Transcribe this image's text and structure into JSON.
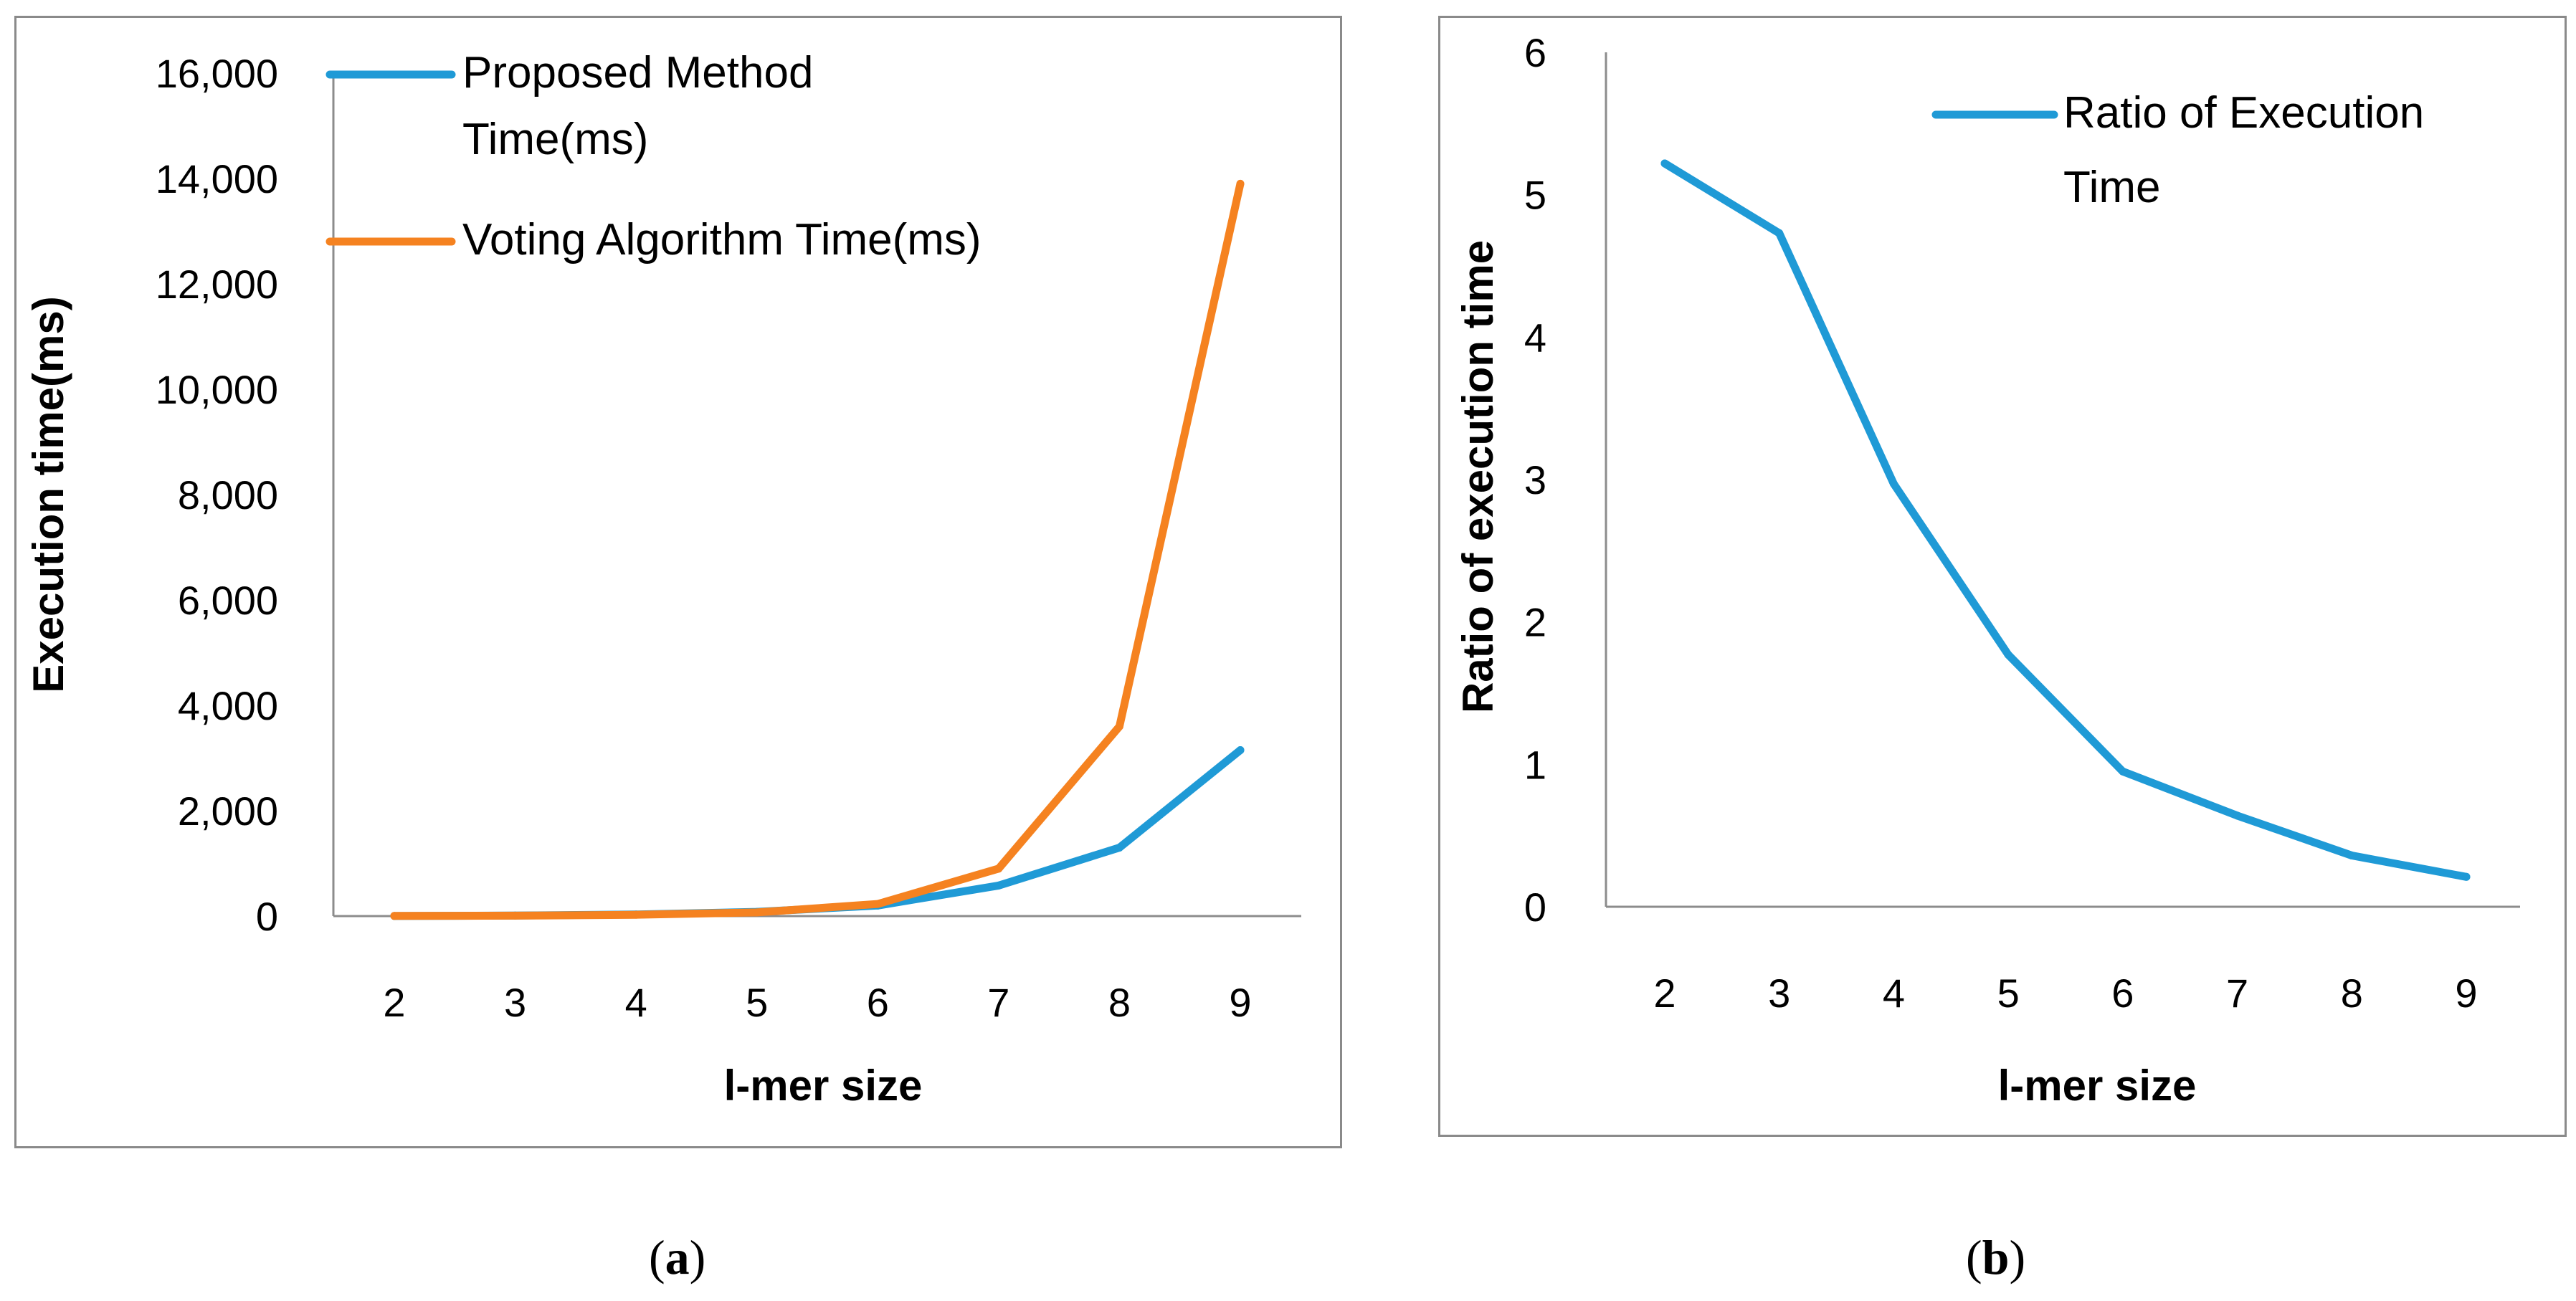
{
  "chart_data": [
    {
      "type": "line",
      "panel": "a",
      "title": "",
      "xlabel": "l-mer size",
      "ylabel": "Execution time(ms)",
      "categories": [
        "2",
        "3",
        "4",
        "5",
        "6",
        "7",
        "8",
        "9"
      ],
      "ylim": [
        0,
        16000
      ],
      "yticks": [
        "0",
        "2,000",
        "4,000",
        "6,000",
        "8,000",
        "10,000",
        "12,000",
        "14,000",
        "16,000"
      ],
      "legend_position": "top-left",
      "grid": false,
      "series": [
        {
          "name": "Proposed Method Time(ms)",
          "legend_lines": [
            "Proposed Method",
            "Time(ms)"
          ],
          "color": "#1f9ad6",
          "values": [
            2,
            10,
            30,
            80,
            200,
            580,
            1300,
            3150
          ]
        },
        {
          "name": "Voting Algorithm Time(ms)",
          "legend_lines": [
            "Voting Algorithm Time(ms)"
          ],
          "color": "#f58220",
          "values": [
            3,
            8,
            25,
            70,
            230,
            900,
            3600,
            13900
          ]
        }
      ]
    },
    {
      "type": "line",
      "panel": "b",
      "title": "",
      "xlabel": "l-mer size",
      "ylabel": "Ratio of execution time",
      "categories": [
        "2",
        "3",
        "4",
        "5",
        "6",
        "7",
        "8",
        "9"
      ],
      "ylim": [
        0,
        6
      ],
      "yticks": [
        "0",
        "1",
        "2",
        "3",
        "4",
        "5",
        "6"
      ],
      "legend_position": "top-right",
      "grid": false,
      "series": [
        {
          "name": "Ratio of Execution Time",
          "legend_lines": [
            "Ratio of Execution",
            "Time"
          ],
          "color": "#1f9ad6",
          "values": [
            5.22,
            4.73,
            2.97,
            1.77,
            0.95,
            0.64,
            0.36,
            0.21
          ]
        }
      ]
    }
  ],
  "captions": {
    "a": "a",
    "b": "b"
  }
}
